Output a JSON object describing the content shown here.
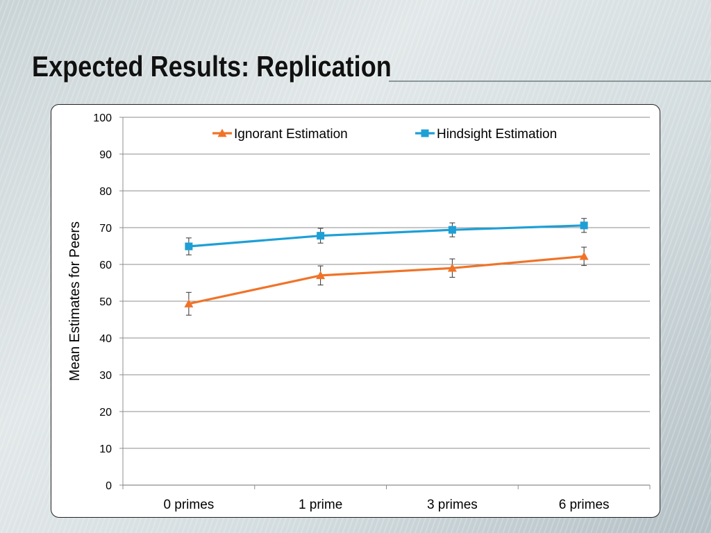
{
  "slide": {
    "title": "Expected Results: Replication"
  },
  "chart_data": {
    "type": "line",
    "categories": [
      "0 primes",
      "1 prime",
      "3 primes",
      "6 primes"
    ],
    "series": [
      {
        "name": "Ignorant Estimation",
        "values": [
          49.3,
          57.0,
          59.0,
          62.2
        ],
        "error": [
          3.1,
          2.6,
          2.5,
          2.5
        ],
        "color": "#f07328",
        "marker": "triangle"
      },
      {
        "name": "Hindsight Estimation",
        "values": [
          64.9,
          67.8,
          69.4,
          70.6
        ],
        "error": [
          2.3,
          2.0,
          1.9,
          1.9
        ],
        "color": "#1e9fd6",
        "marker": "square"
      }
    ],
    "ylabel": "Mean Estimates for Peers",
    "xlabel": "",
    "ylim": [
      0,
      100
    ],
    "yticks": [
      0,
      10,
      20,
      30,
      40,
      50,
      60,
      70,
      80,
      90,
      100
    ],
    "grid": true,
    "legend_position": "top"
  }
}
